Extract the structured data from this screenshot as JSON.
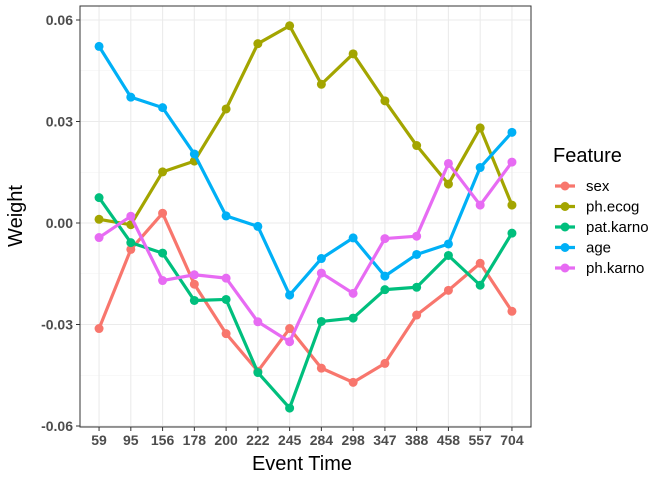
{
  "chart_data": {
    "type": "line",
    "xlabel": "Event Time",
    "ylabel": "Weight",
    "categories": [
      "59",
      "95",
      "156",
      "178",
      "200",
      "222",
      "245",
      "284",
      "298",
      "347",
      "388",
      "458",
      "557",
      "704"
    ],
    "ylim": [
      -0.06,
      0.06
    ],
    "yticks": [
      -0.06,
      -0.03,
      0.0,
      0.03,
      0.06
    ],
    "ytick_labels": [
      "-0.06",
      "-0.03",
      "0.00",
      "0.03",
      "0.06"
    ],
    "grid": true,
    "legend": {
      "title": "Feature",
      "position": "right"
    },
    "series": [
      {
        "name": "sex",
        "color": "#F8766D",
        "values": [
          -0.0312,
          -0.0078,
          0.0029,
          -0.0181,
          -0.0327,
          -0.0438,
          -0.0312,
          -0.0429,
          -0.0471,
          -0.0415,
          -0.0272,
          -0.0199,
          -0.0119,
          -0.0261
        ]
      },
      {
        "name": "ph.ecog",
        "color": "#A3A500",
        "values": [
          0.0011,
          -0.0005,
          0.0151,
          0.0183,
          0.0337,
          0.053,
          0.0583,
          0.041,
          0.05,
          0.0361,
          0.0229,
          0.0115,
          0.0281,
          0.0053
        ]
      },
      {
        "name": "pat.karno",
        "color": "#00BF7D",
        "values": [
          0.0075,
          -0.0058,
          -0.0089,
          -0.0229,
          -0.0226,
          -0.0442,
          -0.0547,
          -0.0291,
          -0.0281,
          -0.0197,
          -0.019,
          -0.0096,
          -0.0184,
          -0.003
        ]
      },
      {
        "name": "age",
        "color": "#00B0F6",
        "values": [
          0.0522,
          0.0372,
          0.0341,
          0.0204,
          0.0021,
          -0.001,
          -0.0213,
          -0.0105,
          -0.0044,
          -0.0157,
          -0.0093,
          -0.0062,
          0.0164,
          0.0268
        ]
      },
      {
        "name": "ph.karno",
        "color": "#E76BF3",
        "values": [
          -0.0043,
          0.002,
          -0.017,
          -0.0153,
          -0.0163,
          -0.0292,
          -0.0351,
          -0.0148,
          -0.0208,
          -0.0046,
          -0.0039,
          0.0176,
          0.0053,
          0.018
        ]
      }
    ]
  }
}
